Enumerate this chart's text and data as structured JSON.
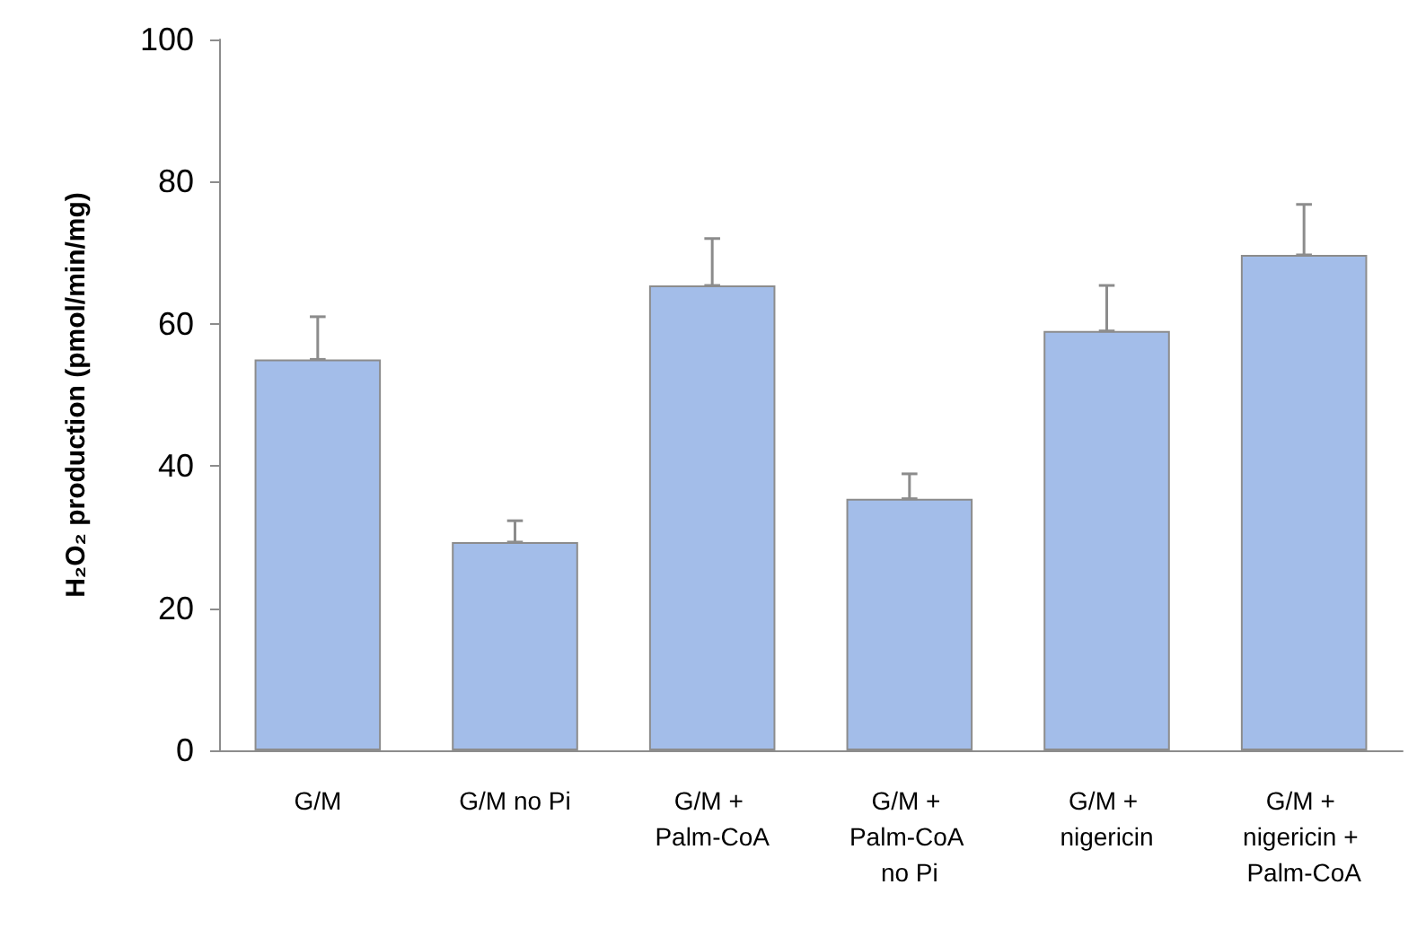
{
  "chart_data": {
    "type": "bar",
    "ylabel": "H₂O₂ production (pmol/min/mg)",
    "categories": [
      "G/M",
      "G/M no Pi",
      "G/M + Palm-CoA",
      "G/M + Palm-CoA no Pi",
      "G/M + nigericin",
      "G/M + nigericin + Palm-CoA"
    ],
    "values": [
      55,
      29.3,
      65.4,
      35.4,
      59,
      69.7
    ],
    "errors": [
      [
        55,
        61
      ],
      [
        29.3,
        32.3
      ],
      [
        65.4,
        72
      ],
      [
        35.4,
        38.9
      ],
      [
        59,
        65.4
      ],
      [
        69.7,
        76.8
      ]
    ],
    "color": "#a3bde9",
    "ylim": [
      0,
      100
    ],
    "yticks": [
      0,
      20,
      40,
      60,
      80,
      100
    ],
    "grid": false
  }
}
